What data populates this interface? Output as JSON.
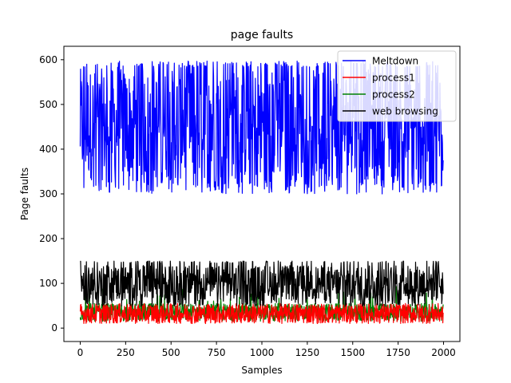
{
  "chart_data": {
    "type": "line",
    "title": "page faults",
    "xlabel": "Samples",
    "ylabel": "Page faults",
    "xlim": [
      -90,
      2090
    ],
    "ylim": [
      -30,
      630
    ],
    "xticks": [
      0,
      250,
      500,
      750,
      1000,
      1250,
      1500,
      1750,
      2000
    ],
    "yticks": [
      0,
      100,
      200,
      300,
      400,
      500,
      600
    ],
    "grid": false,
    "legend_position": "top-right",
    "samples": 2000,
    "series": [
      {
        "name": "Meltdown",
        "color": "#0000ff",
        "range": [
          300,
          597
        ]
      },
      {
        "name": "process1",
        "color": "#ff0000",
        "range": [
          10,
          55
        ]
      },
      {
        "name": "process2",
        "color": "#008000",
        "range": [
          10,
          95
        ]
      },
      {
        "name": "web browsing",
        "color": "#000000",
        "range": [
          48,
          150
        ]
      }
    ]
  }
}
